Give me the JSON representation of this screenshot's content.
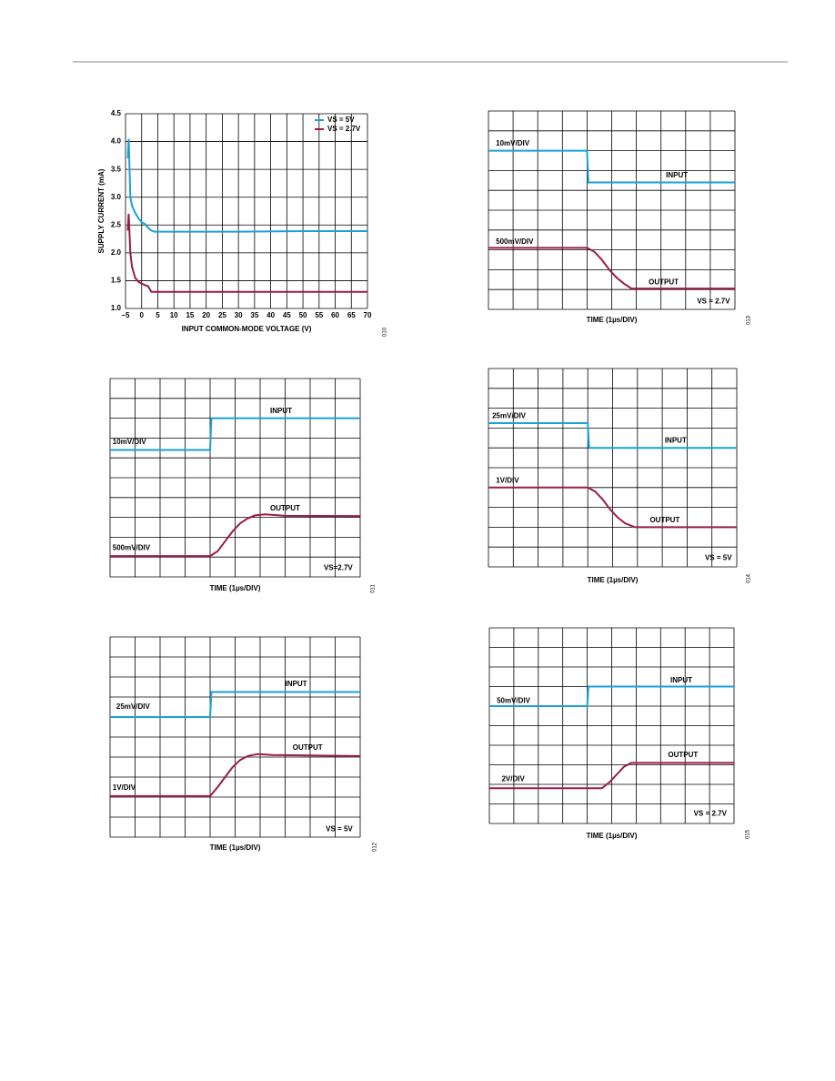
{
  "chart_data": [
    {
      "type": "line",
      "fig": "010",
      "xlabel": "INPUT COMMON-MODE VOLTAGE (V)",
      "ylabel": "SUPPLY CURRENT (mA)",
      "xlim": [
        -5,
        70
      ],
      "ylim": [
        1.0,
        4.5
      ],
      "xticks": [
        {
          "value": -5,
          "label": "–5"
        },
        0,
        5,
        10,
        15,
        20,
        25,
        30,
        35,
        40,
        45,
        50,
        55,
        60,
        65,
        70
      ],
      "yticks": [
        {
          "value": 1.0,
          "label": "1.0"
        },
        1.5,
        {
          "value": 2.0,
          "label": "2.0"
        },
        2.5,
        {
          "value": 3.0,
          "label": "3.0"
        },
        3.5,
        {
          "value": 4.0,
          "label": "4.0"
        },
        4.5
      ],
      "grid": true,
      "legend": "top-right",
      "series": [
        {
          "name": "VS = 5V",
          "color": "#1ba1d6",
          "x": [
            -4.3,
            -4,
            -3.5,
            -3,
            -2,
            -1,
            0,
            1,
            2,
            3,
            4,
            10,
            30,
            50,
            70
          ],
          "values": [
            3.7,
            4.05,
            3.0,
            2.85,
            2.72,
            2.62,
            2.55,
            2.52,
            2.45,
            2.4,
            2.38,
            2.38,
            2.38,
            2.39,
            2.39
          ]
        },
        {
          "name": "VS = 2.7V",
          "color": "#9b1b4a",
          "x": [
            -4.3,
            -4,
            -3.5,
            -3,
            -2,
            -1,
            0,
            1,
            2,
            2.5,
            3,
            70
          ],
          "values": [
            2.4,
            2.7,
            2.0,
            1.75,
            1.55,
            1.48,
            1.45,
            1.42,
            1.4,
            1.35,
            1.3,
            1.3
          ]
        }
      ]
    },
    {
      "type": "scope",
      "fig": "013",
      "xlabel": "TIME (1µs/DIV)",
      "xlim": [
        0,
        10
      ],
      "ylim": [
        0,
        10
      ],
      "xticks": [
        0,
        1,
        2,
        3,
        4,
        5,
        6,
        7,
        8,
        9,
        10
      ],
      "yticks": [
        0,
        1,
        2,
        3,
        4,
        5,
        6,
        7,
        8,
        9,
        10
      ],
      "grid": true,
      "annotations": [
        "10mV/DIV",
        "INPUT",
        "500mV/DIV",
        "OUTPUT",
        "VS = 2.7V"
      ],
      "series": [
        {
          "name": "INPUT",
          "color": "#1ba1d6",
          "x": [
            0,
            4,
            4.05,
            10
          ],
          "values": [
            8,
            8,
            6.4,
            6.4
          ]
        },
        {
          "name": "OUTPUT",
          "color": "#9b1b4a",
          "x": [
            0,
            4,
            4.3,
            4.6,
            4.9,
            5.2,
            5.5,
            5.8,
            10
          ],
          "values": [
            3.1,
            3.1,
            2.9,
            2.5,
            2.0,
            1.6,
            1.3,
            1.05,
            1.05
          ]
        }
      ]
    },
    {
      "type": "scope",
      "fig": "011",
      "xlabel": "TIME (1µs/DIV)",
      "xlim": [
        0,
        10
      ],
      "ylim": [
        0,
        10
      ],
      "xticks": [
        0,
        1,
        2,
        3,
        4,
        5,
        6,
        7,
        8,
        9,
        10
      ],
      "yticks": [
        0,
        1,
        2,
        3,
        4,
        5,
        6,
        7,
        8,
        9,
        10
      ],
      "grid": true,
      "annotations": [
        "INPUT",
        "10mV/DIV",
        "OUTPUT",
        "500mV/DIV",
        "VS=2.7V"
      ],
      "series": [
        {
          "name": "INPUT",
          "color": "#1ba1d6",
          "x": [
            0,
            4,
            4.05,
            10
          ],
          "values": [
            6.4,
            6.4,
            8,
            8
          ]
        },
        {
          "name": "OUTPUT",
          "color": "#9b1b4a",
          "x": [
            0,
            4,
            4.3,
            4.6,
            4.9,
            5.2,
            5.5,
            5.8,
            6.2,
            7,
            10
          ],
          "values": [
            1.05,
            1.05,
            1.3,
            1.8,
            2.3,
            2.7,
            2.95,
            3.1,
            3.15,
            3.08,
            3.07
          ]
        }
      ]
    },
    {
      "type": "scope",
      "fig": "014",
      "xlabel": "TIME (1µs/DIV)",
      "xlim": [
        0,
        10
      ],
      "ylim": [
        0,
        10
      ],
      "xticks": [
        0,
        1,
        2,
        3,
        4,
        5,
        6,
        7,
        8,
        9,
        10
      ],
      "yticks": [
        0,
        1,
        2,
        3,
        4,
        5,
        6,
        7,
        8,
        9,
        10
      ],
      "grid": true,
      "annotations": [
        "25mV/DIV",
        "INPUT",
        "1V/DIV",
        "OUTPUT",
        "VS = 5V"
      ],
      "series": [
        {
          "name": "INPUT",
          "color": "#1ba1d6",
          "x": [
            0,
            4,
            4.05,
            10
          ],
          "values": [
            7.25,
            7.25,
            6.0,
            6.0
          ]
        },
        {
          "name": "OUTPUT",
          "color": "#9b1b4a",
          "x": [
            0,
            4,
            4.3,
            4.6,
            4.9,
            5.2,
            5.5,
            5.9,
            10
          ],
          "values": [
            4.0,
            4.0,
            3.8,
            3.4,
            2.9,
            2.5,
            2.2,
            2.0,
            2.0
          ]
        }
      ]
    },
    {
      "type": "scope",
      "fig": "012",
      "xlabel": "TIME (1µs/DIV)",
      "xlim": [
        0,
        10
      ],
      "ylim": [
        0,
        10
      ],
      "xticks": [
        0,
        1,
        2,
        3,
        4,
        5,
        6,
        7,
        8,
        9,
        10
      ],
      "yticks": [
        0,
        1,
        2,
        3,
        4,
        5,
        6,
        7,
        8,
        9,
        10
      ],
      "grid": true,
      "annotations": [
        "INPUT",
        "25mV/DIV",
        "OUTPUT",
        "1V/DIV",
        "VS = 5V"
      ],
      "series": [
        {
          "name": "INPUT",
          "color": "#1ba1d6",
          "x": [
            0,
            4,
            4.05,
            10
          ],
          "values": [
            6.0,
            6.0,
            7.25,
            7.25
          ]
        },
        {
          "name": "OUTPUT",
          "color": "#9b1b4a",
          "x": [
            0,
            4,
            4.3,
            4.6,
            4.9,
            5.2,
            5.5,
            5.9,
            6.5,
            10
          ],
          "values": [
            2.05,
            2.05,
            2.5,
            3.0,
            3.5,
            3.85,
            4.05,
            4.15,
            4.1,
            4.05
          ]
        }
      ]
    },
    {
      "type": "scope",
      "fig": "015",
      "xlabel": "TIME (1µs/DIV)",
      "xlim": [
        0,
        10
      ],
      "ylim": [
        0,
        10
      ],
      "xticks": [
        0,
        1,
        2,
        3,
        4,
        5,
        6,
        7,
        8,
        9,
        10
      ],
      "yticks": [
        0,
        1,
        2,
        3,
        4,
        5,
        6,
        7,
        8,
        9,
        10
      ],
      "grid": true,
      "annotations": [
        "INPUT",
        "50mV/DIV",
        "OUTPUT",
        "2V/DIV",
        "VS = 2.7V"
      ],
      "series": [
        {
          "name": "INPUT",
          "color": "#1ba1d6",
          "x": [
            0,
            4,
            4.05,
            10
          ],
          "values": [
            6.0,
            6.0,
            7.0,
            7.0
          ]
        },
        {
          "name": "OUTPUT",
          "color": "#9b1b4a",
          "x": [
            0,
            4.6,
            4.9,
            5.2,
            5.5,
            5.8,
            10
          ],
          "values": [
            1.8,
            1.8,
            2.1,
            2.5,
            2.9,
            3.1,
            3.1
          ]
        }
      ]
    }
  ]
}
